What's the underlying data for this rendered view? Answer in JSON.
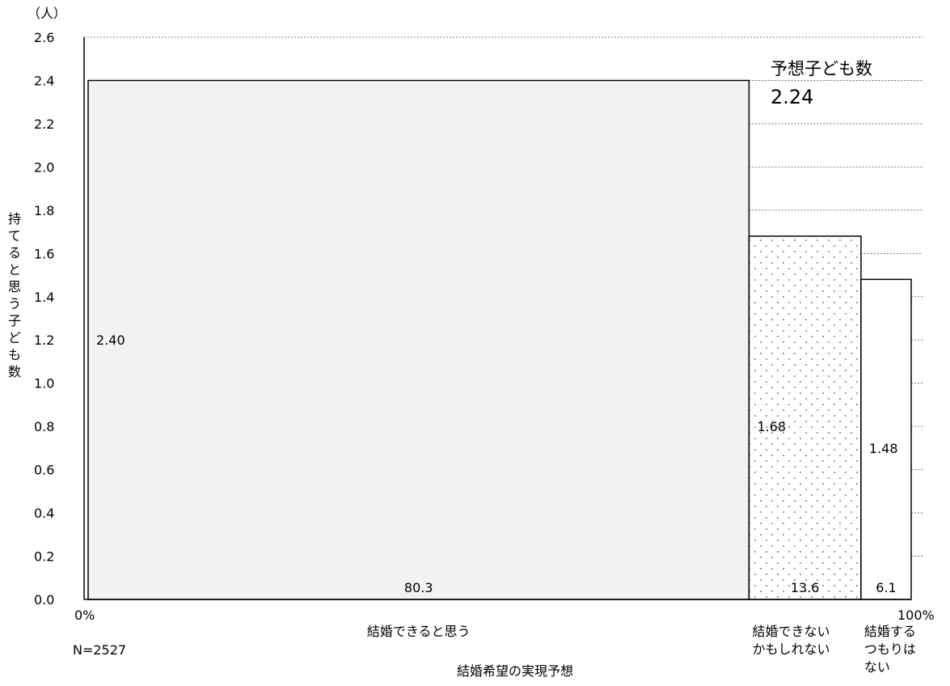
{
  "chart_data": {
    "type": "bar",
    "subtype": "marimekko",
    "unit_label": "（人）",
    "ylabel": "持てると思う子ども数",
    "xlabel": "結婚希望の実現予想",
    "sample_note": "N=2527",
    "ylim": [
      0,
      2.6
    ],
    "yticks": [
      "0.0",
      "0.2",
      "0.4",
      "0.6",
      "0.8",
      "1.0",
      "1.2",
      "1.4",
      "1.6",
      "1.8",
      "2.0",
      "2.2",
      "2.4",
      "2.6"
    ],
    "x_start_label": "0%",
    "x_end_label": "100%",
    "series": [
      {
        "category": [
          "結婚できると思う"
        ],
        "share": 80.3,
        "share_label": "80.3",
        "value": 2.4,
        "value_label": "2.40",
        "fill": "#f2f2f2",
        "pattern": "none"
      },
      {
        "category": [
          "結婚できない",
          "かもしれない"
        ],
        "share": 13.6,
        "share_label": "13.6",
        "value": 1.68,
        "value_label": "1.68",
        "fill": "#ffffff",
        "pattern": "dots"
      },
      {
        "category": [
          "結婚する",
          "つもりは",
          "ない"
        ],
        "share": 6.1,
        "share_label": "6.1",
        "value": 1.48,
        "value_label": "1.48",
        "fill": "#ffffff",
        "pattern": "none"
      }
    ],
    "annotation": {
      "title": "予想子ども数",
      "value": "2.24"
    },
    "grid": {
      "style": "dotted",
      "side": "right"
    }
  }
}
